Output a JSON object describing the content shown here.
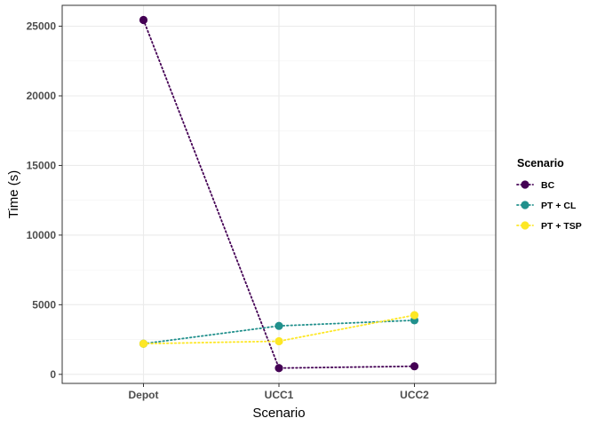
{
  "chart_data": {
    "type": "line",
    "xlabel": "Scenario",
    "ylabel": "Time (s)",
    "categories": [
      "Depot",
      "UCC1",
      "UCC2"
    ],
    "ylim": [
      -650,
      26500
    ],
    "yticks": [
      0,
      5000,
      10000,
      15000,
      20000,
      25000
    ],
    "grid": true,
    "legend": {
      "title": "Scenario",
      "position": "right"
    },
    "series": [
      {
        "name": "BC",
        "color": "#440154",
        "values": [
          25450,
          450,
          580
        ]
      },
      {
        "name": "PT + CL",
        "color": "#21908C",
        "values": [
          2200,
          3480,
          3880
        ]
      },
      {
        "name": "PT + TSP",
        "color": "#FDE725",
        "values": [
          2200,
          2380,
          4250
        ]
      }
    ]
  }
}
